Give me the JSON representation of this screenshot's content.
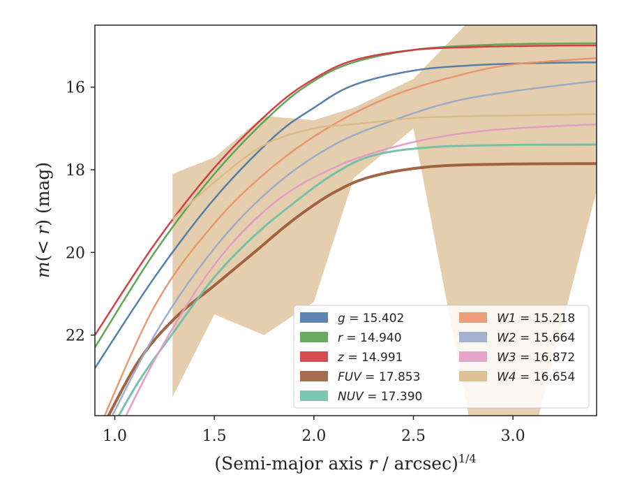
{
  "chart_data": {
    "type": "line",
    "title": "",
    "xlabel": "(Semi-major axis r / arcsec)^1/4",
    "ylabel": "m(< r) (mag)",
    "xlim": [
      0.9,
      3.42
    ],
    "ylim": [
      23.95,
      14.5
    ],
    "y_inverted": true,
    "x_ticks": [
      1.0,
      1.5,
      2.0,
      2.5,
      3.0
    ],
    "y_ticks": [
      16,
      18,
      20,
      22
    ],
    "x_tick_labels": [
      "1.0",
      "1.5",
      "2.0",
      "2.5",
      "3.0"
    ],
    "y_tick_labels": [
      "16",
      "18",
      "20",
      "22"
    ],
    "grid": false,
    "legend_position": "lower-right",
    "legend_columns": 2,
    "series": [
      {
        "name": "g",
        "label_text": "g = 15.402",
        "color": "#4c78a8",
        "asymptote": 15.402,
        "x": [
          0.9,
          1.2,
          1.5,
          1.8,
          2.0,
          2.2,
          2.5,
          2.8,
          3.1,
          3.42
        ],
        "y": [
          22.8,
          20.6,
          18.7,
          17.2,
          16.5,
          15.95,
          15.6,
          15.47,
          15.42,
          15.4
        ]
      },
      {
        "name": "r",
        "label_text": "r = 14.940",
        "color": "#59a14f",
        "asymptote": 14.94,
        "x": [
          0.9,
          1.2,
          1.5,
          1.8,
          2.0,
          2.2,
          2.5,
          2.8,
          3.1,
          3.42
        ],
        "y": [
          22.3,
          20.0,
          18.1,
          16.6,
          15.85,
          15.4,
          15.1,
          14.99,
          14.95,
          14.94
        ]
      },
      {
        "name": "z",
        "label_text": "z = 14.991",
        "color": "#d1373d",
        "asymptote": 14.991,
        "x": [
          0.9,
          1.2,
          1.5,
          1.8,
          2.0,
          2.2,
          2.5,
          2.8,
          3.1,
          3.42
        ],
        "y": [
          22.0,
          19.8,
          17.95,
          16.5,
          15.8,
          15.35,
          15.1,
          15.03,
          15.0,
          14.99
        ]
      },
      {
        "name": "FUV",
        "label_text": "FUV = 17.853",
        "color": "#9c5c3a",
        "asymptote": 17.853,
        "x": [
          0.9,
          1.11,
          1.3,
          1.5,
          1.7,
          1.9,
          2.1,
          2.3,
          2.6,
          3.0,
          3.42
        ],
        "y": [
          24.6,
          22.7,
          21.6,
          20.8,
          20.0,
          19.2,
          18.55,
          18.15,
          17.92,
          17.86,
          17.85
        ]
      },
      {
        "name": "NUV",
        "label_text": "NUV = 17.390",
        "color": "#6fbfa5",
        "asymptote": 17.39,
        "x": [
          0.9,
          1.11,
          1.3,
          1.5,
          1.7,
          1.9,
          2.1,
          2.3,
          2.6,
          3.0,
          3.42
        ],
        "y": [
          25.0,
          23.2,
          21.9,
          20.6,
          19.6,
          18.8,
          18.1,
          17.65,
          17.45,
          17.4,
          17.39
        ]
      },
      {
        "name": "W1",
        "label_text": "W1 = 15.218",
        "color": "#e8956d",
        "asymptote": 15.218,
        "x": [
          0.9,
          1.2,
          1.5,
          1.8,
          2.1,
          2.4,
          2.7,
          3.0,
          3.42
        ],
        "y": [
          24.5,
          21.3,
          19.3,
          17.9,
          16.9,
          16.2,
          15.75,
          15.45,
          15.3
        ]
      },
      {
        "name": "W2",
        "label_text": "W2 = 15.664",
        "color": "#9aa9c8",
        "asymptote": 15.664,
        "x": [
          0.9,
          1.2,
          1.5,
          1.8,
          2.1,
          2.4,
          2.7,
          3.0,
          3.42
        ],
        "y": [
          24.8,
          22.0,
          19.9,
          18.4,
          17.4,
          16.8,
          16.35,
          16.1,
          15.85
        ]
      },
      {
        "name": "W3",
        "label_text": "W3 = 16.872",
        "color": "#e29ac4",
        "asymptote": 16.872,
        "x": [
          0.9,
          1.2,
          1.5,
          1.8,
          2.1,
          2.4,
          2.7,
          3.0,
          3.42
        ],
        "y": [
          25.5,
          22.6,
          20.3,
          18.8,
          17.95,
          17.45,
          17.15,
          17.0,
          16.9
        ]
      },
      {
        "name": "W4",
        "label_text": "W4 = 16.654",
        "color": "#d9b98a",
        "asymptote": 16.654,
        "x": [
          1.29,
          1.5,
          1.75,
          2.0,
          2.2,
          2.5,
          2.8,
          3.1,
          3.42
        ],
        "y": [
          19.2,
          18.3,
          17.4,
          17.0,
          16.9,
          16.75,
          16.7,
          16.68,
          16.65
        ],
        "band_upper": [
          18.1,
          17.7,
          16.7,
          16.8,
          16.5,
          15.8,
          14.3,
          14.3,
          14.3
        ],
        "band_lower": [
          23.5,
          21.5,
          22.0,
          21.2,
          18.2,
          17.0,
          24.5,
          24.5,
          18.5
        ]
      }
    ]
  }
}
